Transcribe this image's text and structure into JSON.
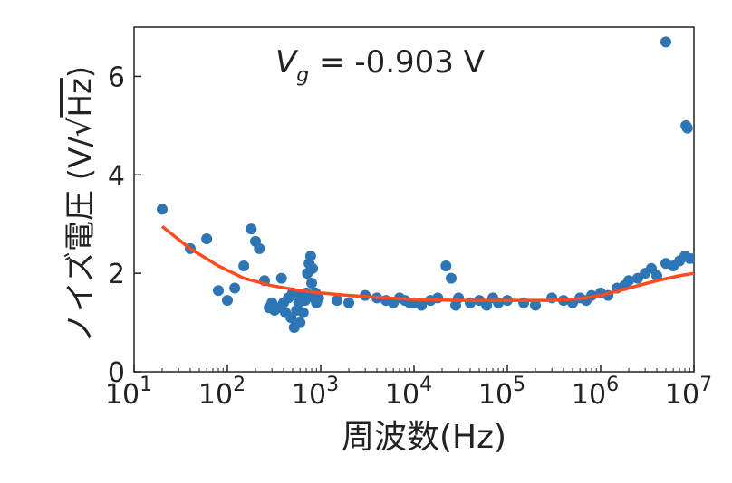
{
  "chart_data": {
    "type": "scatter",
    "annotation": {
      "var": "V",
      "sub": "g",
      "rest": " = -0.903 V"
    },
    "xlabel": "周波数(Hz)",
    "ylabel": {
      "prefix": "ノイズ電圧 (V/",
      "root_symbol": "√",
      "root_arg": "Hz",
      "suffix": ")"
    },
    "x_scale": "log",
    "xlim": [
      10,
      10000000
    ],
    "ylim": [
      0,
      7
    ],
    "x_ticks": [
      {
        "base": "10",
        "exp": "1"
      },
      {
        "base": "10",
        "exp": "2"
      },
      {
        "base": "10",
        "exp": "3"
      },
      {
        "base": "10",
        "exp": "4"
      },
      {
        "base": "10",
        "exp": "5"
      },
      {
        "base": "10",
        "exp": "6"
      },
      {
        "base": "10",
        "exp": "7"
      }
    ],
    "y_ticks": [
      "0",
      "2",
      "4",
      "6"
    ],
    "y_tick_values": [
      0,
      2,
      4,
      6
    ],
    "grid": false,
    "colors": {
      "points": "#2e75b6",
      "fit": "#ff4b1f",
      "axes": "#222222"
    },
    "series": [
      {
        "kind": "points",
        "x": [
          20,
          40,
          60,
          80,
          100,
          120,
          150,
          180,
          200,
          220,
          250,
          280,
          300,
          320,
          350,
          380,
          400,
          420,
          450,
          480,
          500,
          520,
          550,
          580,
          600,
          620,
          650,
          680,
          700,
          720,
          750,
          780,
          800,
          820,
          850,
          880,
          900,
          950,
          1500,
          2000,
          3000,
          4000,
          5000,
          6000,
          7000,
          8000,
          9000,
          10000,
          12000,
          15000,
          18000,
          22000,
          25000,
          28000,
          30000,
          40000,
          50000,
          60000,
          70000,
          80000,
          100000,
          150000,
          200000,
          300000,
          400000,
          500000,
          600000,
          700000,
          800000,
          1000000,
          1200000,
          1500000,
          1800000,
          2000000,
          2500000,
          3000000,
          3500000,
          4000000,
          5000000,
          6000000,
          7000000,
          8000000,
          9000000,
          10000000,
          5000000,
          8200000,
          8500000
        ],
        "y": [
          3.3,
          2.5,
          2.7,
          1.65,
          1.45,
          1.7,
          2.15,
          2.9,
          2.65,
          2.5,
          1.85,
          1.3,
          1.4,
          1.25,
          1.3,
          1.9,
          1.4,
          1.2,
          1.5,
          1.1,
          1.6,
          0.9,
          1.25,
          1.4,
          1.0,
          1.55,
          1.2,
          1.45,
          1.6,
          2.0,
          2.2,
          2.35,
          1.8,
          2.1,
          1.5,
          1.6,
          1.4,
          1.5,
          1.45,
          1.4,
          1.55,
          1.5,
          1.45,
          1.4,
          1.5,
          1.45,
          1.4,
          1.4,
          1.35,
          1.45,
          1.5,
          2.15,
          1.9,
          1.35,
          1.5,
          1.4,
          1.45,
          1.35,
          1.5,
          1.4,
          1.45,
          1.4,
          1.35,
          1.5,
          1.45,
          1.4,
          1.5,
          1.45,
          1.55,
          1.6,
          1.55,
          1.7,
          1.75,
          1.85,
          1.9,
          2.0,
          2.1,
          1.95,
          2.2,
          2.15,
          2.25,
          2.35,
          2.3,
          2.3,
          6.7,
          5.0,
          4.95
        ]
      },
      {
        "kind": "fit_line",
        "x": [
          20,
          40,
          80,
          150,
          300,
          600,
          1000,
          2000,
          5000,
          10000,
          30000,
          100000,
          300000,
          600000,
          1000000,
          2000000,
          4000000,
          7000000,
          10000000
        ],
        "y": [
          2.95,
          2.5,
          2.15,
          1.9,
          1.75,
          1.65,
          1.6,
          1.55,
          1.5,
          1.47,
          1.45,
          1.45,
          1.45,
          1.48,
          1.55,
          1.7,
          1.85,
          1.95,
          2.0
        ]
      }
    ]
  }
}
